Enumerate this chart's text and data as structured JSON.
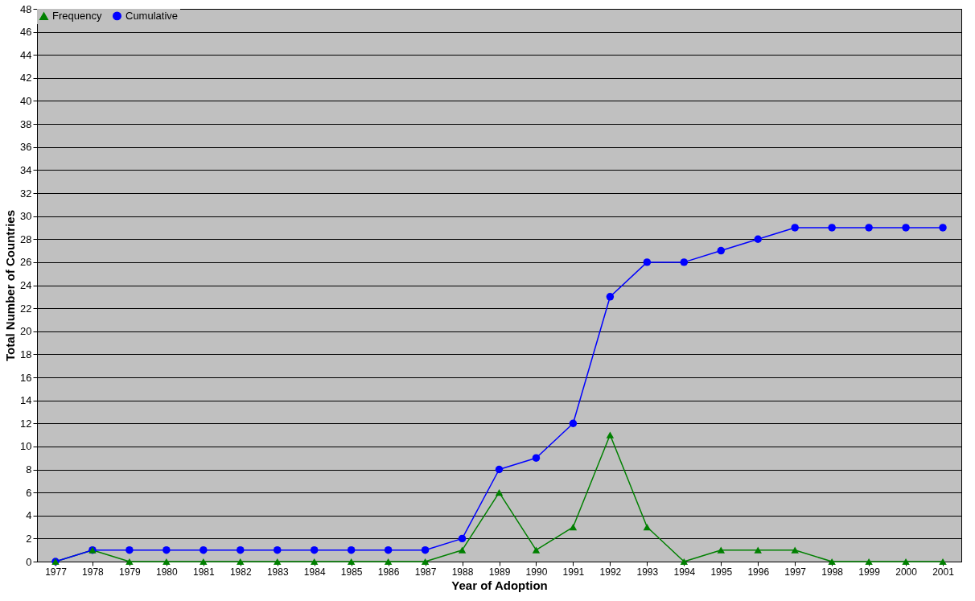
{
  "chart_data": {
    "type": "line",
    "xlabel": "Year of Adoption",
    "ylabel": "Total Number of Countries",
    "categories": [
      "1977",
      "1978",
      "1979",
      "1980",
      "1981",
      "1982",
      "1983",
      "1984",
      "1985",
      "1986",
      "1987",
      "1988",
      "1989",
      "1990",
      "1991",
      "1992",
      "1993",
      "1994",
      "1995",
      "1996",
      "1997",
      "1998",
      "1999",
      "2000",
      "2001"
    ],
    "series": [
      {
        "name": "Frequency",
        "color": "#008000",
        "marker": "triangle",
        "values": [
          0,
          1,
          0,
          0,
          0,
          0,
          0,
          0,
          0,
          0,
          0,
          1,
          6,
          1,
          3,
          11,
          3,
          0,
          1,
          1,
          1,
          0,
          0,
          0,
          0
        ]
      },
      {
        "name": "Cumulative",
        "color": "#0000ff",
        "marker": "circle",
        "values": [
          0,
          1,
          1,
          1,
          1,
          1,
          1,
          1,
          1,
          1,
          1,
          2,
          8,
          9,
          12,
          23,
          26,
          26,
          27,
          28,
          29,
          29,
          29,
          29,
          29
        ]
      }
    ],
    "ylim": [
      0,
      48
    ],
    "yticks": [
      0,
      2,
      4,
      6,
      8,
      10,
      12,
      14,
      16,
      18,
      20,
      22,
      24,
      26,
      28,
      30,
      32,
      34,
      36,
      38,
      40,
      42,
      44,
      46,
      48
    ],
    "grid": "y",
    "legend": "top left",
    "line_style": "solid"
  }
}
